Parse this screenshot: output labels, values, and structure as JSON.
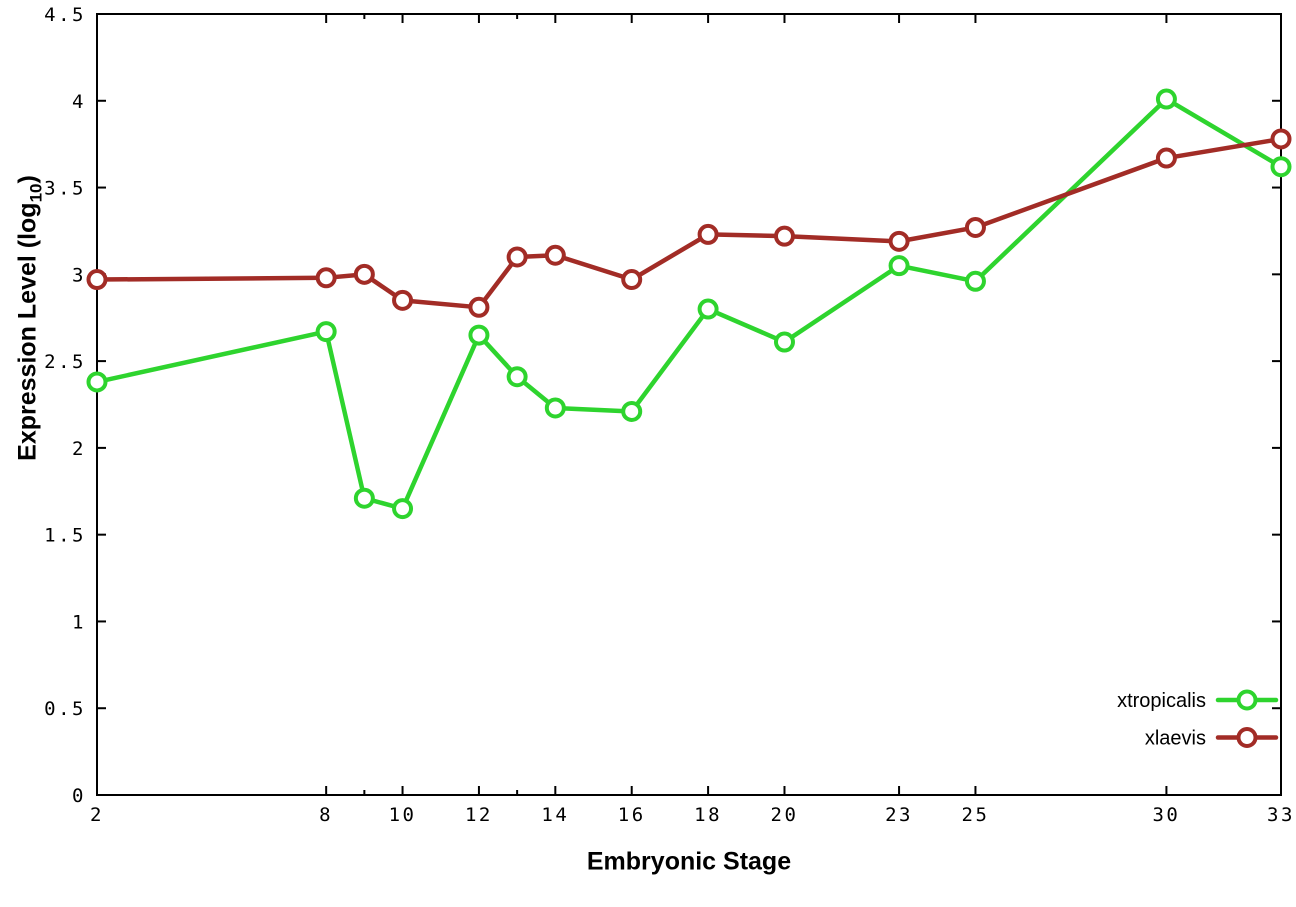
{
  "chart_data": {
    "type": "line",
    "title": "",
    "xlabel": "Embryonic Stage",
    "ylabel": {
      "main": "Expression Level (log",
      "sub": "10",
      "close": ")"
    },
    "xlim": [
      2,
      33
    ],
    "ylim": [
      0,
      4.5
    ],
    "grid": false,
    "legend_position": "bottom-right-inside",
    "x": [
      2,
      8,
      9,
      10,
      12,
      13,
      14,
      16,
      18,
      20,
      23,
      25,
      30,
      33
    ],
    "xtick_values": [
      2,
      8,
      10,
      12,
      14,
      16,
      18,
      20,
      23,
      25,
      30,
      33
    ],
    "xtick_labels": [
      "2",
      "8",
      "10",
      "12",
      "14",
      "16",
      "18",
      "20",
      "23",
      "25",
      "30",
      "33"
    ],
    "xtick_minor": [
      9,
      13
    ],
    "ytick_values": [
      0,
      0.5,
      1,
      1.5,
      2,
      2.5,
      3,
      3.5,
      4,
      4.5
    ],
    "ytick_labels": [
      "0",
      "0.5",
      "1",
      "1.5",
      "2",
      "2.5",
      "3",
      "3.5",
      "4",
      "4.5"
    ],
    "series": [
      {
        "name": "xtropicalis",
        "color": "#2ed42e",
        "values": [
          2.38,
          2.67,
          1.71,
          1.65,
          2.65,
          2.41,
          2.23,
          2.21,
          2.8,
          2.61,
          3.05,
          2.96,
          4.01,
          3.62
        ]
      },
      {
        "name": "xlaevis",
        "color": "#a22c26",
        "values": [
          2.97,
          2.98,
          3.0,
          2.85,
          2.81,
          3.1,
          3.11,
          2.97,
          3.23,
          3.22,
          3.19,
          3.27,
          3.67,
          3.78
        ]
      }
    ]
  },
  "colors": {
    "axis": "#000000",
    "background": "#ffffff",
    "marker_fill": "#ffffff"
  }
}
